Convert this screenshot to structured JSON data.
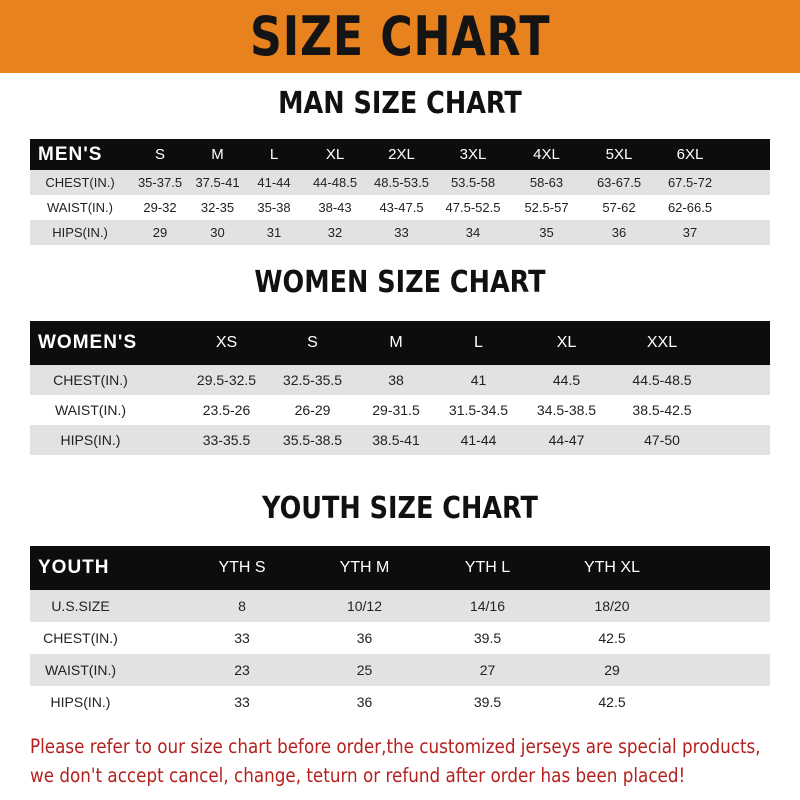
{
  "title": "SIZE CHART",
  "colors": {
    "banner": "#e8821e",
    "header_row": "#0d0d0d",
    "note": "#b5201e"
  },
  "men": {
    "title": "MAN SIZE CHART",
    "header": [
      "MEN'S",
      "S",
      "M",
      "L",
      "XL",
      "2XL",
      "3XL",
      "4XL",
      "5XL",
      "6XL"
    ],
    "rows": [
      [
        "CHEST(IN.)",
        "35-37.5",
        "37.5-41",
        "41-44",
        "44-48.5",
        "48.5-53.5",
        "53.5-58",
        "58-63",
        "63-67.5",
        "67.5-72"
      ],
      [
        "WAIST(IN.)",
        "29-32",
        "32-35",
        "35-38",
        "38-43",
        "43-47.5",
        "47.5-52.5",
        "52.5-57",
        "57-62",
        "62-66.5"
      ],
      [
        "HIPS(IN.)",
        "29",
        "30",
        "31",
        "32",
        "33",
        "34",
        "35",
        "36",
        "37"
      ]
    ]
  },
  "women": {
    "title": "WOMEN SIZE CHART",
    "header": [
      "WOMEN'S",
      "XS",
      "S",
      "M",
      "L",
      "XL",
      "XXL"
    ],
    "rows": [
      [
        "CHEST(IN.)",
        "29.5-32.5",
        "32.5-35.5",
        "38",
        "41",
        "44.5",
        "44.5-48.5"
      ],
      [
        "WAIST(IN.)",
        "23.5-26",
        "26-29",
        "29-31.5",
        "31.5-34.5",
        "34.5-38.5",
        "38.5-42.5"
      ],
      [
        "HIPS(IN.)",
        "33-35.5",
        "35.5-38.5",
        "38.5-41",
        "41-44",
        "44-47",
        "47-50"
      ]
    ]
  },
  "youth": {
    "title": "YOUTH SIZE CHART",
    "header": [
      "YOUTH",
      "YTH S",
      "YTH M",
      "YTH L",
      "YTH XL"
    ],
    "rows": [
      [
        "U.S.SIZE",
        "8",
        "10/12",
        "14/16",
        "18/20"
      ],
      [
        "CHEST(IN.)",
        "33",
        "36",
        "39.5",
        "42.5"
      ],
      [
        "WAIST(IN.)",
        "23",
        "25",
        "27",
        "29"
      ],
      [
        "HIPS(IN.)",
        "33",
        "36",
        "39.5",
        "42.5"
      ]
    ]
  },
  "note": {
    "line1": "Please refer to our size chart before order,the customized jerseys are special products,",
    "line2": "we don't accept cancel, change, teturn or refund after order has been placed!"
  }
}
